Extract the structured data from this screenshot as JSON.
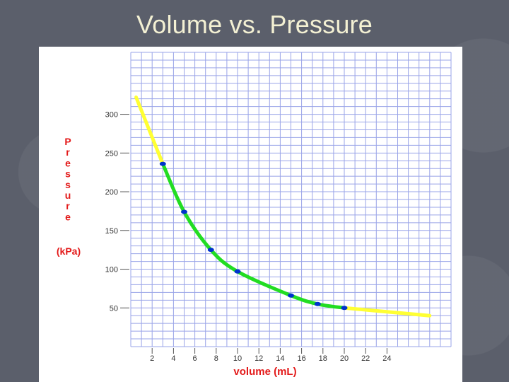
{
  "slide": {
    "title": "Volume vs. Pressure"
  },
  "colors": {
    "background": "#5b5f6b",
    "title": "#f3f0d3",
    "grid": "#9aa4e8",
    "axis_label": "#e31a1a",
    "measured_curve": "#22dd22",
    "extrapolated_curve": "#ffff33",
    "points": "#0033cc"
  },
  "chart_data": {
    "type": "line",
    "title": "",
    "xlabel": "volume (mL)",
    "ylabel": "Pressure",
    "ylabel_unit": "(kPa)",
    "x_ticks": [
      2,
      4,
      6,
      8,
      10,
      12,
      14,
      16,
      18,
      20,
      22,
      24
    ],
    "y_ticks": [
      50,
      100,
      150,
      200,
      250,
      300
    ],
    "xlim": [
      0,
      30
    ],
    "ylim": [
      0,
      380
    ],
    "grid": true,
    "series": [
      {
        "style": "measured",
        "color": "#22dd22",
        "x": [
          3,
          5,
          7.5,
          10,
          15,
          17.5,
          20
        ],
        "y": [
          236,
          174,
          125,
          97,
          66,
          55,
          50
        ],
        "markers": true
      },
      {
        "style": "extrapolated",
        "color": "#ffff33",
        "x": [
          0.5,
          3
        ],
        "y": [
          322,
          236
        ],
        "markers": false
      },
      {
        "style": "extrapolated",
        "color": "#ffff33",
        "x": [
          20,
          24,
          28
        ],
        "y": [
          50,
          45,
          40
        ],
        "markers": false
      }
    ]
  }
}
